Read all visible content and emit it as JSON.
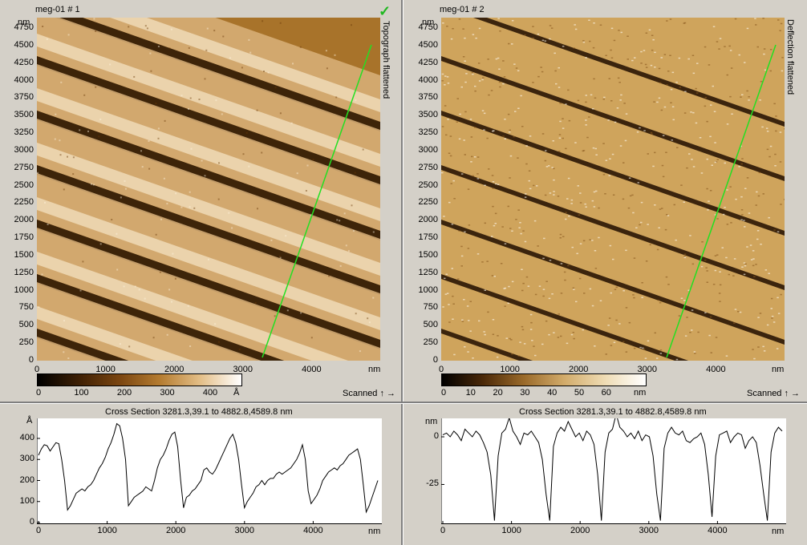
{
  "panels": [
    {
      "title": "meg-01 # 1",
      "channel": "Topograph flattened",
      "unit_axis": "nm",
      "y_ticks": [
        "4750",
        "4500",
        "4250",
        "4000",
        "3750",
        "3500",
        "3250",
        "3000",
        "2750",
        "2500",
        "2250",
        "2000",
        "1750",
        "1500",
        "1250",
        "1000",
        "750",
        "500",
        "250",
        "0"
      ],
      "x_ticks": [
        "0",
        "1000",
        "2000",
        "3000",
        "4000"
      ],
      "colorbar_ticks": [
        "0",
        "100",
        "200",
        "300",
        "400"
      ],
      "colorbar_unit": "Å",
      "scanned_label": "Scanned ↑ →",
      "colors": [
        "#2a1604",
        "#6b3a08",
        "#a8732a",
        "#d9b27a",
        "#fff5e0"
      ]
    },
    {
      "title": "meg-01 # 2",
      "channel": "Deflection flattened",
      "unit_axis": "nm",
      "y_ticks": [
        "4750",
        "4500",
        "4250",
        "4000",
        "3750",
        "3500",
        "3250",
        "3000",
        "2750",
        "2500",
        "2250",
        "2000",
        "1750",
        "1500",
        "1250",
        "1000",
        "750",
        "500",
        "250",
        "0"
      ],
      "x_ticks": [
        "0",
        "1000",
        "2000",
        "3000",
        "4000"
      ],
      "colorbar_ticks": [
        "0",
        "10",
        "20",
        "30",
        "40",
        "50",
        "60"
      ],
      "colorbar_unit": "nm",
      "scanned_label": "Scanned ↑ →",
      "colors": [
        "#2a1604",
        "#8a5a20",
        "#cfa45c",
        "#e8cfa0",
        "#fffaf0"
      ]
    }
  ],
  "cross_sections": [
    {
      "title": "Cross Section 3281.3,39.1 to 4882.8,4589.8 nm",
      "y_unit": "Å",
      "y_ticks": [
        "400",
        "300",
        "200",
        "100",
        "0"
      ],
      "x_ticks": [
        "0",
        "1000",
        "2000",
        "3000",
        "4000"
      ],
      "x_unit": "nm",
      "ylim": [
        0,
        480
      ],
      "profile": [
        320,
        350,
        370,
        365,
        340,
        360,
        380,
        375,
        300,
        200,
        60,
        80,
        110,
        140,
        150,
        160,
        150,
        170,
        180,
        200,
        230,
        260,
        280,
        310,
        350,
        380,
        420,
        470,
        460,
        400,
        300,
        80,
        100,
        120,
        130,
        140,
        150,
        170,
        160,
        150,
        200,
        260,
        300,
        320,
        350,
        390,
        420,
        430,
        360,
        200,
        70,
        120,
        130,
        150,
        160,
        180,
        200,
        250,
        260,
        240,
        230,
        250,
        280,
        310,
        340,
        370,
        400,
        420,
        380,
        300,
        180,
        70,
        100,
        120,
        140,
        170,
        180,
        200,
        180,
        200,
        210,
        210,
        230,
        240,
        230,
        240,
        250,
        260,
        280,
        300,
        330,
        370,
        300,
        150,
        90,
        110,
        130,
        160,
        200,
        220,
        240,
        250,
        260,
        250,
        270,
        280,
        300,
        320,
        330,
        340,
        350,
        300,
        180,
        50,
        80,
        120,
        160,
        200
      ]
    },
    {
      "title": "Cross Section 3281.3,39.1 to 4882.8,4589.8 nm",
      "y_unit": "nm",
      "y_ticks": [
        "0",
        "-25"
      ],
      "x_ticks": [
        "0",
        "1000",
        "2000",
        "3000",
        "4000"
      ],
      "x_unit": "nm",
      "ylim": [
        -45,
        8
      ],
      "profile": [
        1,
        2,
        0,
        3,
        1,
        -2,
        4,
        2,
        0,
        3,
        1,
        -3,
        -8,
        -20,
        -44,
        -10,
        2,
        4,
        10,
        3,
        0,
        -4,
        2,
        1,
        3,
        0,
        -3,
        -12,
        -30,
        -44,
        -5,
        2,
        5,
        3,
        8,
        4,
        0,
        2,
        -2,
        3,
        1,
        -4,
        -20,
        -44,
        -8,
        2,
        4,
        12,
        5,
        3,
        0,
        2,
        -1,
        3,
        -2,
        1,
        0,
        -10,
        -30,
        -44,
        -6,
        2,
        5,
        2,
        1,
        3,
        -2,
        -3,
        -1,
        0,
        2,
        -4,
        -20,
        -42,
        -10,
        1,
        2,
        3,
        -3,
        0,
        2,
        1,
        -6,
        -2,
        0,
        -3,
        -15,
        -30,
        -44,
        -8,
        2,
        5,
        3
      ]
    }
  ]
}
